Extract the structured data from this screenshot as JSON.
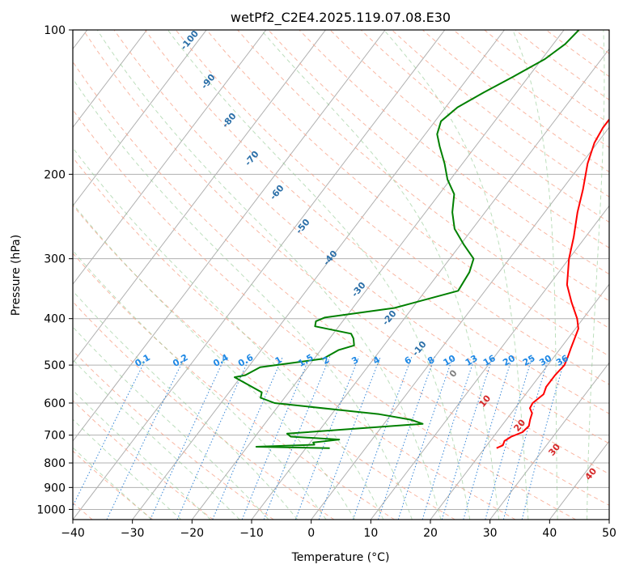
{
  "chart_data": {
    "type": "line",
    "title": "wetPf2_C2E4.2025.119.07.08.E30",
    "xlabel": "Temperature (°C)",
    "ylabel": "Pressure (hPa)",
    "xlim": [
      -40,
      50
    ],
    "ylim": [
      1050,
      100
    ],
    "x_scale": "linear",
    "y_scale": "log",
    "x_ticks": [
      "−40",
      "−30",
      "−20",
      "−10",
      "0",
      "10",
      "20",
      "30",
      "40",
      "50"
    ],
    "y_ticks": [
      "100",
      "200",
      "300",
      "400",
      "500",
      "600",
      "700",
      "800",
      "900",
      "1000"
    ],
    "grid": true,
    "skew": true,
    "dry_adiabat_labels": [
      "-100",
      "-90",
      "-80",
      "-70",
      "-60",
      "-50",
      "-40",
      "-30",
      "-20",
      "-10",
      "0",
      "10",
      "20",
      "30",
      "40"
    ],
    "mixing_ratio_labels": [
      "0.1",
      "0.2",
      "0.4",
      "0.6",
      "1",
      "1.5",
      "2",
      "3",
      "4",
      "6",
      "8",
      "10",
      "13",
      "16",
      "20",
      "25",
      "30",
      "36"
    ],
    "series": [
      {
        "color": "#ff0000",
        "points": [
          [
            22.0,
            745
          ],
          [
            22.7,
            735
          ],
          [
            22.4,
            720
          ],
          [
            23.0,
            705
          ],
          [
            24.3,
            690
          ],
          [
            24.6,
            670
          ],
          [
            24.0,
            650
          ],
          [
            23.5,
            630
          ],
          [
            22.5,
            615
          ],
          [
            22.3,
            600
          ],
          [
            23.0,
            575
          ],
          [
            22.5,
            555
          ],
          [
            22.5,
            525
          ],
          [
            22.8,
            500
          ],
          [
            22.3,
            480
          ],
          [
            21.7,
            460
          ],
          [
            20.5,
            420
          ],
          [
            19.0,
            400
          ],
          [
            16.0,
            370
          ],
          [
            13.0,
            340
          ],
          [
            10.0,
            300
          ],
          [
            8.0,
            270
          ],
          [
            5.5,
            240
          ],
          [
            3.5,
            215
          ],
          [
            1.0,
            190
          ],
          [
            -0.5,
            172
          ],
          [
            -1.0,
            160
          ],
          [
            -1.0,
            150
          ],
          [
            -1.5,
            140
          ],
          [
            -2.0,
            130
          ],
          [
            -3.5,
            120
          ],
          [
            -4.5,
            112
          ],
          [
            -5.5,
            106
          ],
          [
            -7.0,
            100
          ]
        ]
      },
      {
        "color": "#008000",
        "points": [
          [
            -6.0,
            745
          ],
          [
            -18.5,
            740
          ],
          [
            -9.0,
            733
          ],
          [
            -9.5,
            725
          ],
          [
            -5.5,
            715
          ],
          [
            -14.0,
            705
          ],
          [
            -15.0,
            695
          ],
          [
            6.5,
            663
          ],
          [
            4.0,
            650
          ],
          [
            -2.0,
            633
          ],
          [
            -21.0,
            600
          ],
          [
            -24.0,
            585
          ],
          [
            -24.5,
            570
          ],
          [
            -31.0,
            530
          ],
          [
            -29.5,
            525
          ],
          [
            -28.0,
            505
          ],
          [
            -18.5,
            485
          ],
          [
            -17.0,
            465
          ],
          [
            -15.0,
            455
          ],
          [
            -16.0,
            440
          ],
          [
            -17.0,
            430
          ],
          [
            -24.0,
            415
          ],
          [
            -24.5,
            405
          ],
          [
            -23.5,
            398
          ],
          [
            -13.0,
            380
          ],
          [
            -4.5,
            350
          ],
          [
            -5.0,
            320
          ],
          [
            -6.0,
            300
          ],
          [
            -9.5,
            280
          ],
          [
            -13.0,
            260
          ],
          [
            -15.5,
            240
          ],
          [
            -17.5,
            220
          ],
          [
            -20.5,
            205
          ],
          [
            -23.0,
            190
          ],
          [
            -26.0,
            175
          ],
          [
            -28.0,
            165
          ],
          [
            -29.0,
            155
          ],
          [
            -28.0,
            145
          ],
          [
            -25.5,
            135
          ],
          [
            -22.5,
            125
          ],
          [
            -19.5,
            115
          ],
          [
            -18.0,
            107
          ],
          [
            -17.5,
            100
          ]
        ]
      }
    ]
  }
}
